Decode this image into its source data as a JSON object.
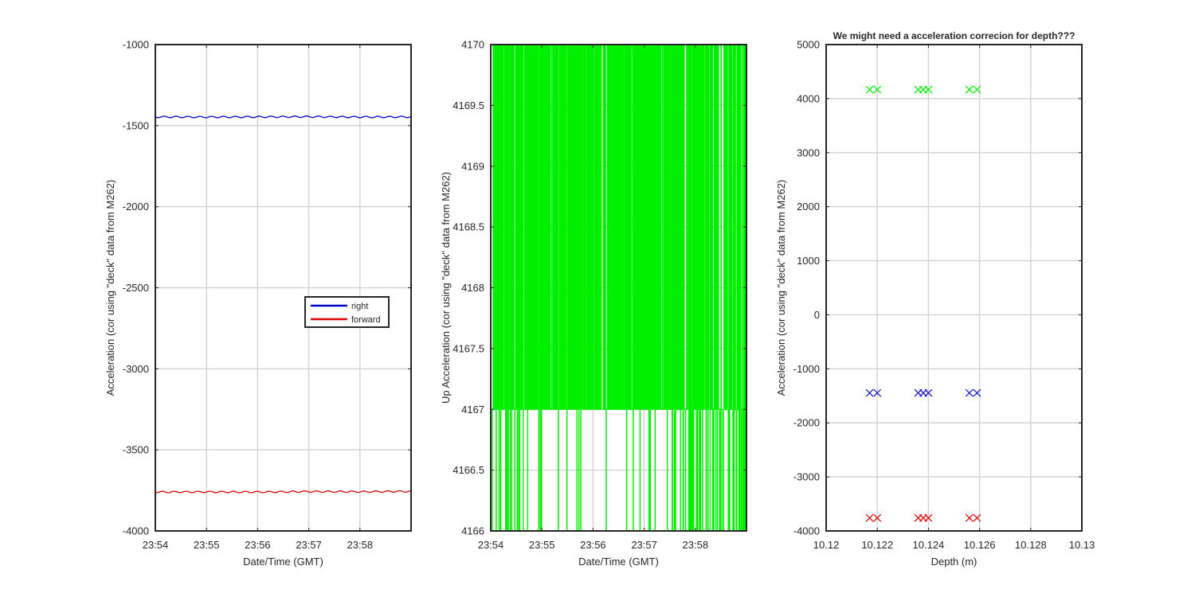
{
  "chart_data": [
    {
      "type": "line",
      "title": "",
      "xlabel": "Date/Time (GMT)",
      "ylabel": "Acceleration (cor using \"deck\" data from M262)",
      "xlim": [
        "23:54",
        "23:59"
      ],
      "ylim": [
        -4000,
        -1000
      ],
      "x_ticks": [
        "23:54",
        "23:55",
        "23:56",
        "23:57",
        "23:58"
      ],
      "y_ticks": [
        -1000,
        -1500,
        -2000,
        -2500,
        -3000,
        -3500,
        -4000
      ],
      "grid": true,
      "legend": "center-right",
      "series": [
        {
          "name": "right",
          "color": "#0000cc",
          "x": [
            "23:54",
            "23:55",
            "23:56",
            "23:57",
            "23:58",
            "23:59"
          ],
          "values": [
            -1446,
            -1447,
            -1446,
            -1445,
            -1447,
            -1446
          ]
        },
        {
          "name": "forward",
          "color": "#dd0000",
          "x": [
            "23:54",
            "23:55",
            "23:56",
            "23:57",
            "23:58",
            "23:59"
          ],
          "values": [
            -3760,
            -3759,
            -3760,
            -3757,
            -3758,
            -3756
          ]
        }
      ]
    },
    {
      "type": "line",
      "title": "",
      "xlabel": "Date/Time (GMT)",
      "ylabel": "Up Acceleration (cor using \"deck\" data from M262)",
      "xlim": [
        "23:54",
        "23:59"
      ],
      "ylim": [
        4166,
        4170
      ],
      "x_ticks": [
        "23:54",
        "23:55",
        "23:56",
        "23:57",
        "23:58"
      ],
      "y_ticks": [
        "4170",
        "4169.5",
        "4169",
        "4168.5",
        "4168",
        "4167.5",
        "4167",
        "4166.5",
        "4166"
      ],
      "grid": true,
      "series": [
        {
          "color": "#00ee00",
          "x": [
            "23:54",
            "23:59"
          ],
          "values_range": [
            4166,
            4170
          ],
          "typical_values": [
            4166,
            4167,
            4170
          ]
        }
      ]
    },
    {
      "type": "scatter",
      "title": "We might need a acceleration correcion for depth???",
      "xlabel": "Depth (m)",
      "ylabel": "Acceleration (cor using \"deck\" data from M262)",
      "xlim": [
        10.12,
        10.13
      ],
      "ylim": [
        -4000,
        5000
      ],
      "x_ticks": [
        "10.12",
        "10.122",
        "10.124",
        "10.126",
        "10.128",
        "10.13"
      ],
      "y_ticks": [
        5000,
        4000,
        3000,
        2000,
        1000,
        0,
        -1000,
        -2000,
        -3000,
        -4000
      ],
      "grid": true,
      "marker": "x",
      "series": [
        {
          "color": "#00ee00",
          "x": [
            10.1217,
            10.122,
            10.1236,
            10.1238,
            10.124,
            10.1256,
            10.1259
          ],
          "values": [
            4167,
            4167,
            4167,
            4167,
            4167,
            4167,
            4167
          ]
        },
        {
          "color": "#0000cc",
          "x": [
            10.1217,
            10.122,
            10.1236,
            10.1238,
            10.124,
            10.1256,
            10.1259
          ],
          "values": [
            -1446,
            -1446,
            -1446,
            -1446,
            -1446,
            -1446,
            -1446
          ]
        },
        {
          "color": "#dd0000",
          "x": [
            10.1217,
            10.122,
            10.1236,
            10.1238,
            10.124,
            10.1256,
            10.1259
          ],
          "values": [
            -3759,
            -3759,
            -3759,
            -3759,
            -3759,
            -3759,
            -3759
          ]
        }
      ]
    }
  ]
}
